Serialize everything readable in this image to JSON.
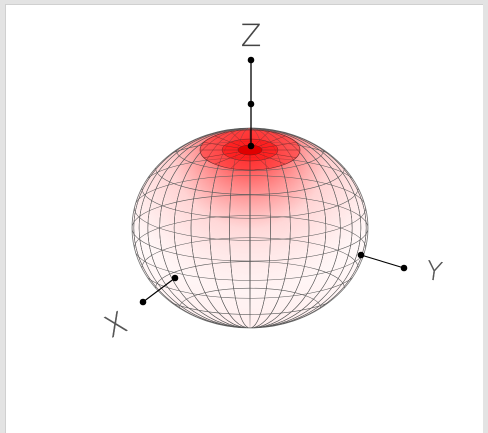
{
  "diagram": {
    "shape": "oblate-spheroid-with-dimpled-pole",
    "surface_color": "#ff2020",
    "mesh_color": "#555555",
    "axis_color": "#000000",
    "axes": {
      "z_label": "Z",
      "y_label": "Y",
      "x_label": "X"
    }
  }
}
